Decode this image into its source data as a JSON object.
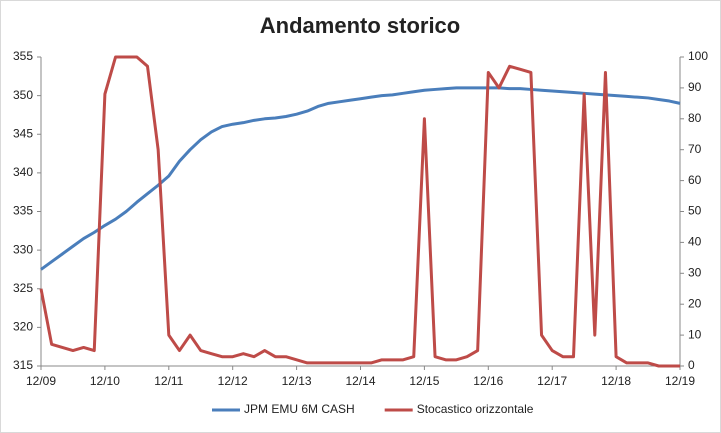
{
  "chart_data": {
    "type": "line",
    "title": "Andamento storico",
    "categories": [
      "12/09",
      null,
      null,
      null,
      null,
      null,
      "12/10",
      null,
      null,
      null,
      null,
      null,
      "12/11",
      null,
      null,
      null,
      null,
      null,
      "12/12",
      null,
      null,
      null,
      null,
      null,
      "12/13",
      null,
      null,
      null,
      null,
      null,
      "12/14",
      null,
      null,
      null,
      null,
      null,
      "12/15",
      null,
      null,
      null,
      null,
      null,
      "12/16",
      null,
      null,
      null,
      null,
      null,
      "12/17",
      null,
      null,
      null,
      null,
      null,
      "12/18",
      null,
      null,
      null,
      null,
      null,
      "12/19"
    ],
    "series": [
      {
        "name": "JPM EMU 6M CASH",
        "color": "#4a7ebb",
        "axis": "y",
        "values": [
          327.5,
          328.5,
          329.5,
          330.5,
          331.5,
          332.3,
          333.2,
          334.0,
          335.0,
          336.2,
          337.3,
          338.4,
          339.6,
          341.5,
          343.0,
          344.3,
          345.3,
          346.0,
          346.3,
          346.5,
          346.8,
          347.0,
          347.1,
          347.3,
          347.6,
          348.0,
          348.6,
          349.0,
          349.2,
          349.4,
          349.6,
          349.8,
          350.0,
          350.1,
          350.3,
          350.5,
          350.7,
          350.8,
          350.9,
          351.0,
          351.0,
          351.0,
          351.0,
          351.0,
          350.9,
          350.9,
          350.8,
          350.7,
          350.6,
          350.5,
          350.4,
          350.3,
          350.2,
          350.1,
          350.0,
          349.9,
          349.8,
          349.7,
          349.5,
          349.3,
          349.0
        ]
      },
      {
        "name": "Stocastico orizzontale",
        "color": "#be4b48",
        "axis": "y2",
        "values": [
          25,
          7,
          6,
          5,
          6,
          5,
          88,
          100,
          100,
          100,
          97,
          70,
          10,
          5,
          10,
          5,
          4,
          3,
          3,
          4,
          3,
          5,
          3,
          3,
          2,
          1,
          1,
          1,
          1,
          1,
          1,
          1,
          2,
          2,
          2,
          3,
          80,
          3,
          2,
          2,
          3,
          5,
          95,
          90,
          97,
          96,
          95,
          10,
          5,
          3,
          3,
          88,
          10,
          95,
          3,
          1,
          1,
          1,
          0,
          0,
          0
        ]
      }
    ],
    "ylim": [
      315,
      355
    ],
    "yticks": [
      315,
      320,
      325,
      330,
      335,
      340,
      345,
      350,
      355
    ],
    "y2lim": [
      0,
      100
    ],
    "y2ticks": [
      0,
      10,
      20,
      30,
      40,
      50,
      60,
      70,
      80,
      90,
      100
    ],
    "legend": "bottom"
  }
}
